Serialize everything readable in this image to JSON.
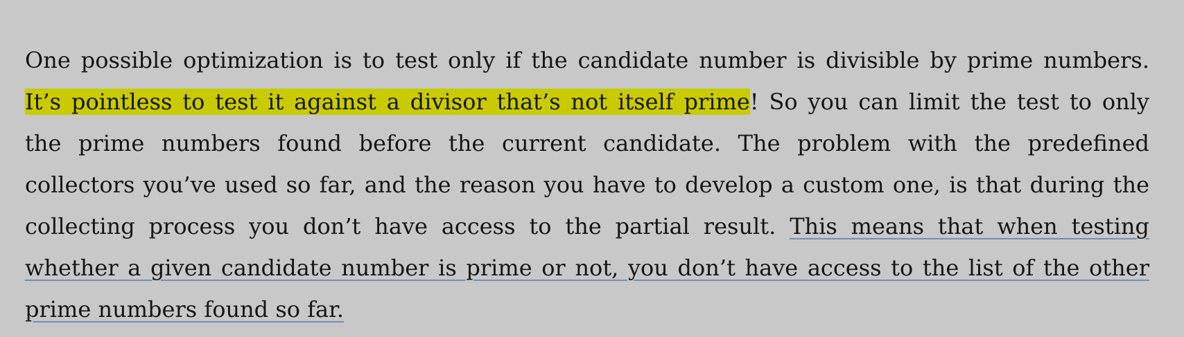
{
  "paragraph": {
    "lines": [
      {
        "text": "One possible optimization is to test only if the candidate number is divisible by prime numbers."
      },
      {
        "highlight": "It’s pointless to test it against a divisor that’s not itself prime",
        "rest": "! So you can limit the test to only"
      },
      {
        "text": "the prime numbers found before the current candidate. The problem with the predefined"
      },
      {
        "text": "collectors you’ve used so far, and the reason you have to develop a custom one, is that during the"
      },
      {
        "text": "collecting process you don’t have access to the partial result.",
        "underlined": "This means that when testing"
      },
      {
        "underlined": "whether a given candidate number is prime or not, you don’t have access to the list of the other"
      },
      {
        "underlined": "prime numbers found so far."
      }
    ]
  },
  "colors": {
    "background": "#c8c8c8",
    "highlight": "#c9cb00",
    "underline": "#6f8fb7",
    "text": "#151515"
  }
}
